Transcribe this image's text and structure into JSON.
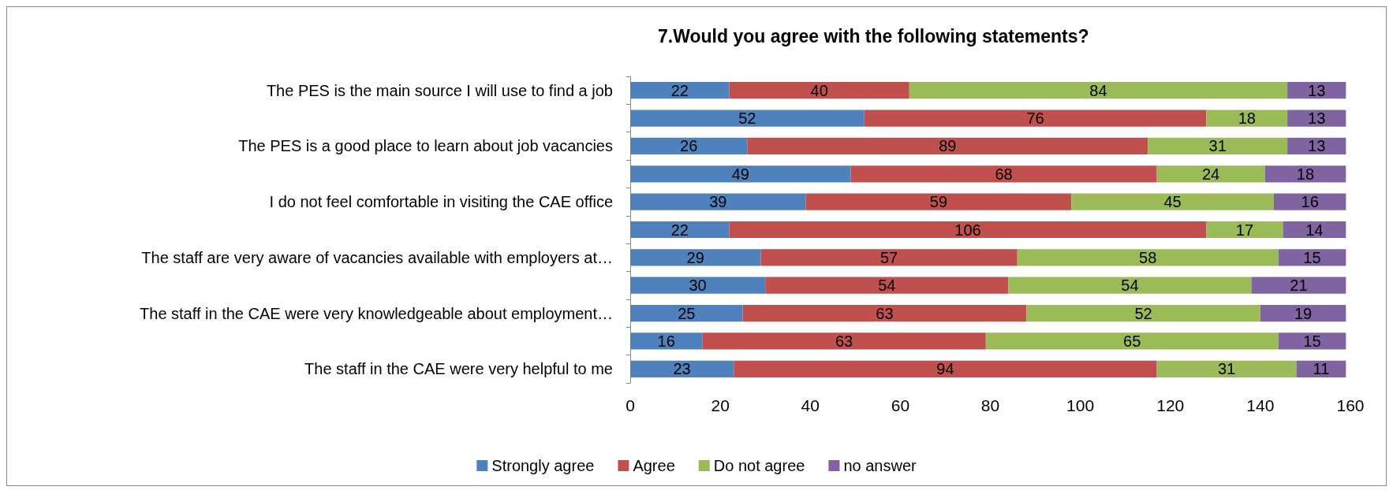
{
  "chart_data": {
    "type": "bar",
    "orientation": "horizontal",
    "stacked": true,
    "title": "7.Would you agree with the following statements?",
    "categories": [
      "The PES is the main source I will use to find a job",
      null,
      "The PES is a good place to learn about job vacancies",
      null,
      "I do not feel comfortable in visiting the CAE office",
      null,
      "The staff are very aware of vacancies available with employers at…",
      null,
      "The staff in the CAE were very knowledgeable about employment…",
      null,
      "The staff in the CAE were very helpful to me"
    ],
    "series": [
      {
        "name": "Strongly agree",
        "color": "#4f81bd",
        "values": [
          22,
          52,
          26,
          49,
          39,
          22,
          29,
          30,
          25,
          16,
          23
        ]
      },
      {
        "name": "Agree",
        "color": "#c0504d",
        "values": [
          40,
          76,
          89,
          68,
          59,
          106,
          57,
          54,
          63,
          63,
          94
        ]
      },
      {
        "name": "Do not agree",
        "color": "#9bbb59",
        "values": [
          84,
          18,
          31,
          24,
          45,
          17,
          58,
          54,
          52,
          65,
          31
        ]
      },
      {
        "name": "no answer",
        "color": "#8064a2",
        "values": [
          13,
          13,
          13,
          18,
          16,
          14,
          15,
          21,
          19,
          15,
          11
        ]
      }
    ],
    "xlim": [
      0,
      160
    ],
    "xticks": [
      0,
      20,
      40,
      60,
      80,
      100,
      120,
      140,
      160
    ],
    "grid": false,
    "legend": "bottom",
    "data_labels": true
  }
}
